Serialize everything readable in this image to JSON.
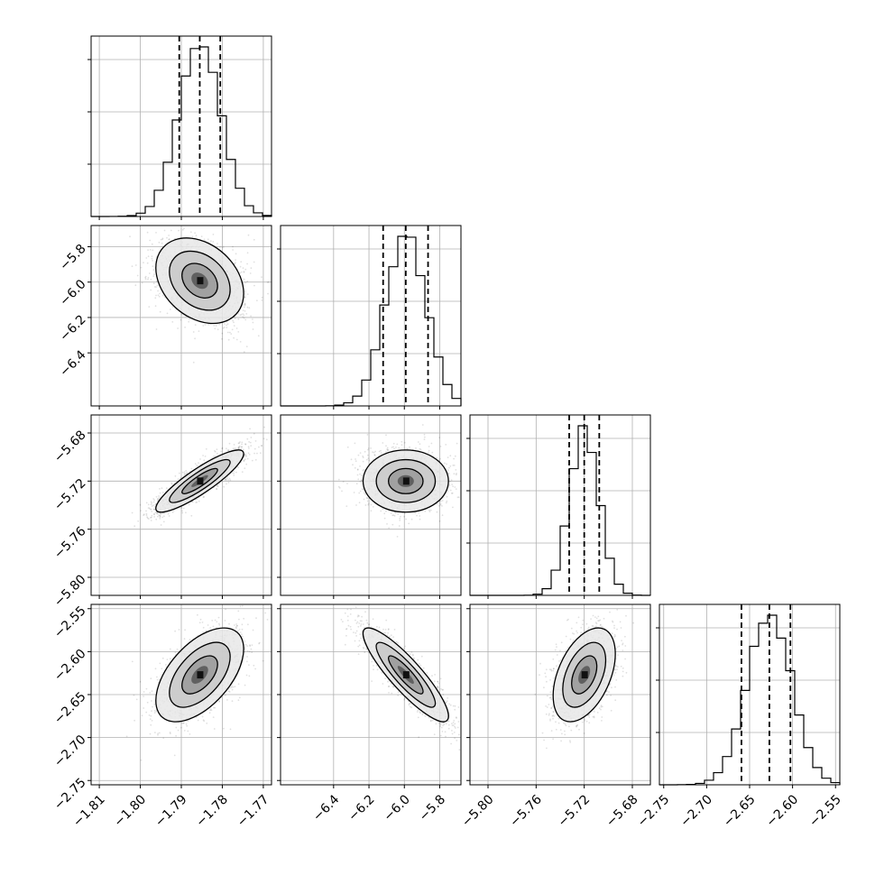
{
  "chart_data": {
    "type": "corner",
    "title": "",
    "xlabel": "",
    "ylabel": "",
    "grid": true,
    "parameters": [
      {
        "index": 0,
        "range": [
          -1.812,
          -1.768
        ],
        "ticks": [
          -1.81,
          -1.8,
          -1.79,
          -1.78,
          -1.77
        ],
        "tick_labels": [
          "−1.81",
          "−1.80",
          "−1.79",
          "−1.78",
          "−1.77"
        ],
        "median": -1.7855,
        "q16": -1.7905,
        "q84": -1.7805,
        "std": 0.0051
      },
      {
        "index": 1,
        "range": [
          -6.7,
          -5.68
        ],
        "ticks": [
          -6.4,
          -6.2,
          -6.0,
          -5.8
        ],
        "tick_labels": [
          "−6.4",
          "−6.2",
          "−6.0",
          "−5.8"
        ],
        "y_ticks": [
          -5.8,
          -6.0,
          -6.2,
          -6.4
        ],
        "y_tick_labels": [
          "−5.8",
          "−6.0",
          "−6.2",
          "−6.4"
        ],
        "median": -5.992,
        "q16": -6.12,
        "q84": -5.866,
        "std": 0.115
      },
      {
        "index": 2,
        "range": [
          -5.815,
          -5.665
        ],
        "ticks": [
          -5.8,
          -5.76,
          -5.72,
          -5.68
        ],
        "tick_labels": [
          "−5.80",
          "−5.76",
          "−5.72",
          "−5.68"
        ],
        "median": -5.72,
        "q16": -5.7325,
        "q84": -5.7075,
        "std": 0.0123
      },
      {
        "index": 3,
        "range": [
          -2.755,
          -2.545
        ],
        "ticks": [
          -2.75,
          -2.7,
          -2.65,
          -2.6,
          -2.55
        ],
        "tick_labels": [
          "−2.75",
          "−2.70",
          "−2.65",
          "−2.60",
          "−2.55"
        ],
        "median": -2.627,
        "q16": -2.6595,
        "q84": -2.6025,
        "std": 0.026
      }
    ],
    "correlations": [
      {
        "pair": [
          1,
          0
        ],
        "rho": -0.3
      },
      {
        "pair": [
          2,
          0
        ],
        "rho": 0.88
      },
      {
        "pair": [
          2,
          1
        ],
        "rho": 0.0
      },
      {
        "pair": [
          3,
          0
        ],
        "rho": 0.55
      },
      {
        "pair": [
          3,
          1
        ],
        "rho": -0.88
      },
      {
        "pair": [
          3,
          2
        ],
        "rho": 0.45
      }
    ],
    "colors": {
      "axes": "#000000",
      "grid": "#b0b0b0",
      "points": "#000000",
      "contour": "#000000"
    }
  }
}
